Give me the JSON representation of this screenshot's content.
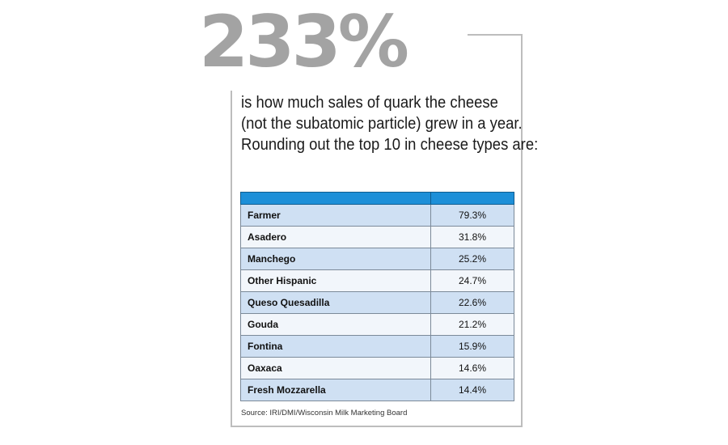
{
  "headline": "233%",
  "intro_lines": [
    "is how much sales of quark the cheese",
    "(not the subatomic particle) grew in a year.",
    "Rounding out the top 10 in cheese types are:"
  ],
  "source": "Source: IRI/DMI/Wisconsin Milk Marketing Board",
  "colors": {
    "header": "#1d8fd8",
    "row_odd": "#cfe0f3",
    "row_even": "#f2f6fb",
    "headline": "#a3a3a3"
  },
  "chart_data": {
    "type": "table",
    "columns": [
      "",
      ""
    ],
    "categories": [
      "Farmer",
      "Asadero",
      "Manchego",
      "Other Hispanic",
      "Queso Quesadilla",
      "Gouda",
      "Fontina",
      "Oaxaca",
      "Fresh Mozzarella"
    ],
    "values": [
      "79.3%",
      "31.8%",
      "25.2%",
      "24.7%",
      "22.6%",
      "21.2%",
      "15.9%",
      "14.6%",
      "14.4%"
    ],
    "title": "",
    "xlabel": "",
    "ylabel": ""
  }
}
